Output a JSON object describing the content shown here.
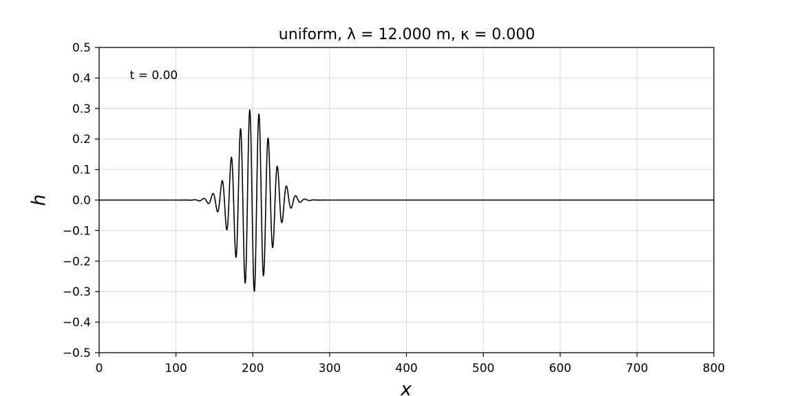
{
  "chart_data": {
    "type": "line",
    "title": "uniform, λ = 12.000 m, κ = 0.000",
    "xlabel": "x",
    "ylabel": "h",
    "xlim": [
      0,
      800
    ],
    "ylim": [
      -0.5,
      0.5
    ],
    "xticks": [
      0,
      100,
      200,
      300,
      400,
      500,
      600,
      700,
      800
    ],
    "xtick_labels": [
      "0",
      "100",
      "200",
      "300",
      "400",
      "500",
      "600",
      "700",
      "800"
    ],
    "yticks": [
      0.5,
      0.4,
      0.3,
      0.2,
      0.1,
      0.0,
      -0.1,
      -0.2,
      -0.3,
      -0.4,
      -0.5
    ],
    "ytick_labels": [
      "0.5",
      "0.4",
      "0.3",
      "0.2",
      "0.1",
      "0.0",
      "−0.1",
      "−0.2",
      "−0.3",
      "−0.4",
      "−0.5"
    ],
    "grid": true,
    "annotation": {
      "text": "t = 0.00",
      "x": 40,
      "y": 0.41
    },
    "series": [
      {
        "color": "#000000",
        "wave_packet": {
          "center": 200,
          "amplitude": 0.3,
          "wavelength": 12,
          "width": 32,
          "phase_peak_x": 196
        }
      }
    ]
  }
}
